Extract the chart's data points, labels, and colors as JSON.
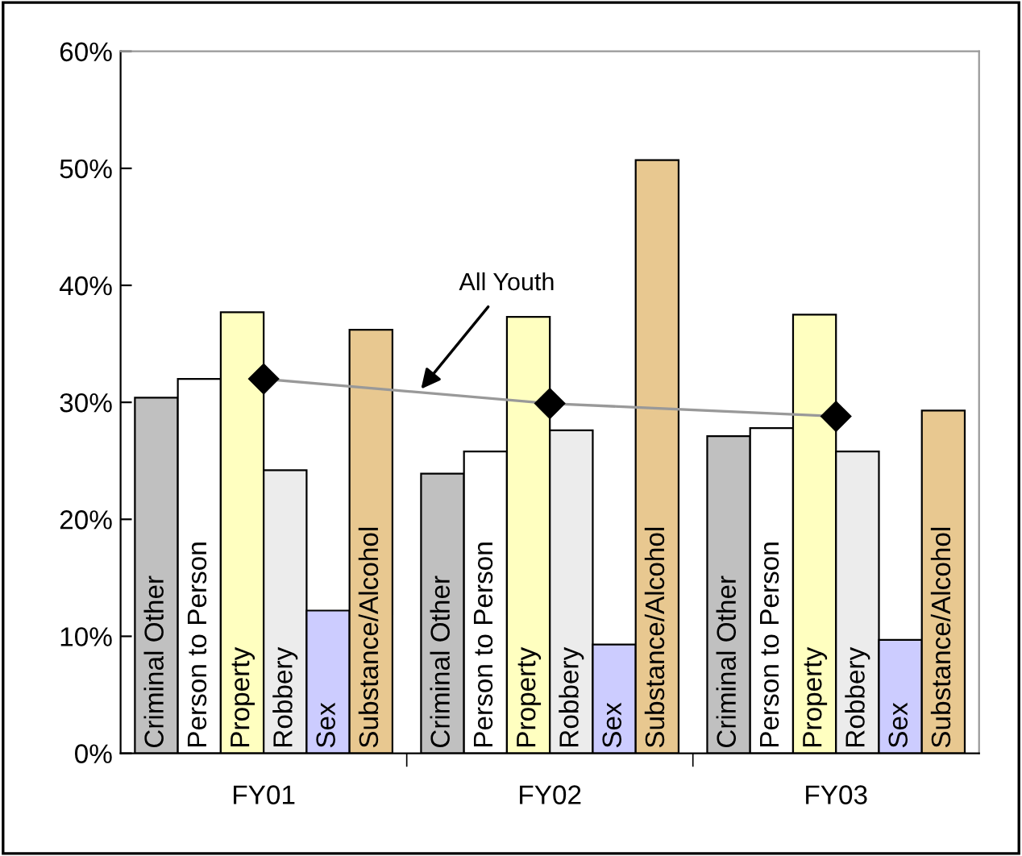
{
  "chart_data": {
    "type": "bar",
    "categories": [
      "FY01",
      "FY02",
      "FY03"
    ],
    "ylim": [
      0,
      60
    ],
    "yticks": [
      {
        "value": 0,
        "label": "0%"
      },
      {
        "value": 10,
        "label": "10%"
      },
      {
        "value": 20,
        "label": "20%"
      },
      {
        "value": 30,
        "label": "30%"
      },
      {
        "value": 40,
        "label": "40%"
      },
      {
        "value": 50,
        "label": "50%"
      },
      {
        "value": 60,
        "label": "60%"
      }
    ],
    "grid": false,
    "legend": false,
    "series": [
      {
        "name": "Criminal Other",
        "color": "#c0c0c0",
        "values": [
          30.4,
          23.9,
          27.1
        ]
      },
      {
        "name": "Person to Person",
        "color": "#ffffff",
        "values": [
          32.0,
          25.8,
          27.8
        ]
      },
      {
        "name": "Property",
        "color": "#ffffc0",
        "values": [
          37.7,
          37.3,
          37.5
        ]
      },
      {
        "name": "Robbery",
        "color": "#ececec",
        "values": [
          24.2,
          27.6,
          25.8
        ]
      },
      {
        "name": "Sex",
        "color": "#ccccff",
        "values": [
          12.2,
          9.3,
          9.7
        ]
      },
      {
        "name": "Substance/Alcohol",
        "color": "#e8c890",
        "values": [
          36.2,
          50.7,
          29.3
        ]
      },
      {
        "name": "All Youth",
        "type": "line",
        "color": "#999999",
        "marker": "diamond",
        "values": [
          32.0,
          29.9,
          28.8
        ]
      }
    ]
  }
}
